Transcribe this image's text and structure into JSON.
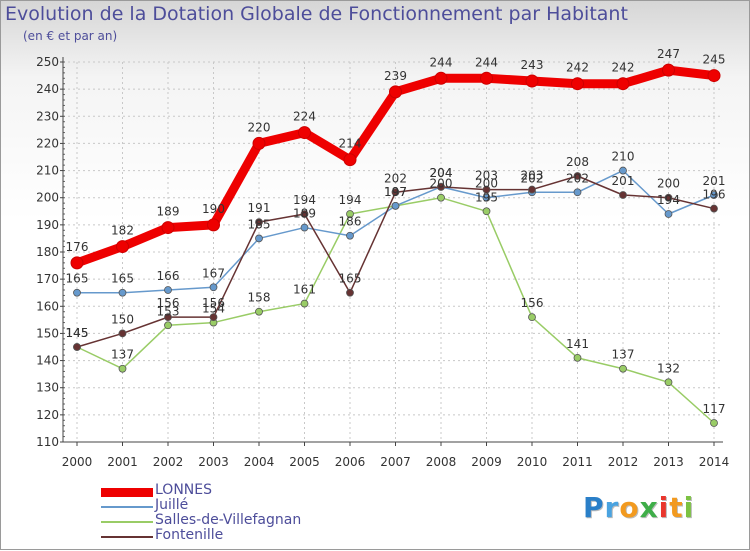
{
  "header": {
    "title": "Evolution de la Dotation Globale de Fonctionnement par Habitant",
    "subtitle": "(en € et par an)"
  },
  "chart_data": {
    "type": "line",
    "title": "Evolution de la Dotation Globale de Fonctionnement par Habitant",
    "subtitle": "(en € et par an)",
    "xlabel": "",
    "ylabel": "",
    "x": [
      "2000",
      "2001",
      "2002",
      "2003",
      "2004",
      "2005",
      "2006",
      "2007",
      "2008",
      "2009",
      "2010",
      "2011",
      "2012",
      "2013",
      "2014"
    ],
    "ylim": [
      110,
      250
    ],
    "yticks": [
      110,
      120,
      130,
      140,
      150,
      160,
      170,
      180,
      190,
      200,
      210,
      220,
      230,
      240,
      250
    ],
    "grid": true,
    "series": [
      {
        "name": "LONNES",
        "color": "#ee0000",
        "values": [
          176,
          182,
          189,
          190,
          220,
          224,
          214,
          239,
          244,
          244,
          243,
          242,
          242,
          247,
          245
        ]
      },
      {
        "name": "Juillé",
        "color": "#6699cc",
        "values": [
          165,
          165,
          166,
          167,
          185,
          189,
          186,
          197,
          204,
          200,
          202,
          202,
          210,
          194,
          201
        ]
      },
      {
        "name": "Salles-de-Villefagnan",
        "color": "#99cc66",
        "values": [
          145,
          137,
          153,
          154,
          158,
          161,
          194,
          197,
          200,
          195,
          156,
          141,
          137,
          132,
          117
        ]
      },
      {
        "name": "Fontenille",
        "color": "#663333",
        "values": [
          145,
          150,
          156,
          156,
          191,
          194,
          165,
          202,
          204,
          203,
          203,
          208,
          201,
          200,
          196
        ]
      }
    ],
    "legend": "bottom-left"
  },
  "logo": {
    "letters": [
      "P",
      "r",
      "o",
      "x",
      "i",
      "t",
      "i"
    ],
    "colors": [
      "#2a7fc8",
      "#4aa3e0",
      "#f29a1f",
      "#3fae49",
      "#e9362d",
      "#f29a1f",
      "#7cc242"
    ]
  }
}
